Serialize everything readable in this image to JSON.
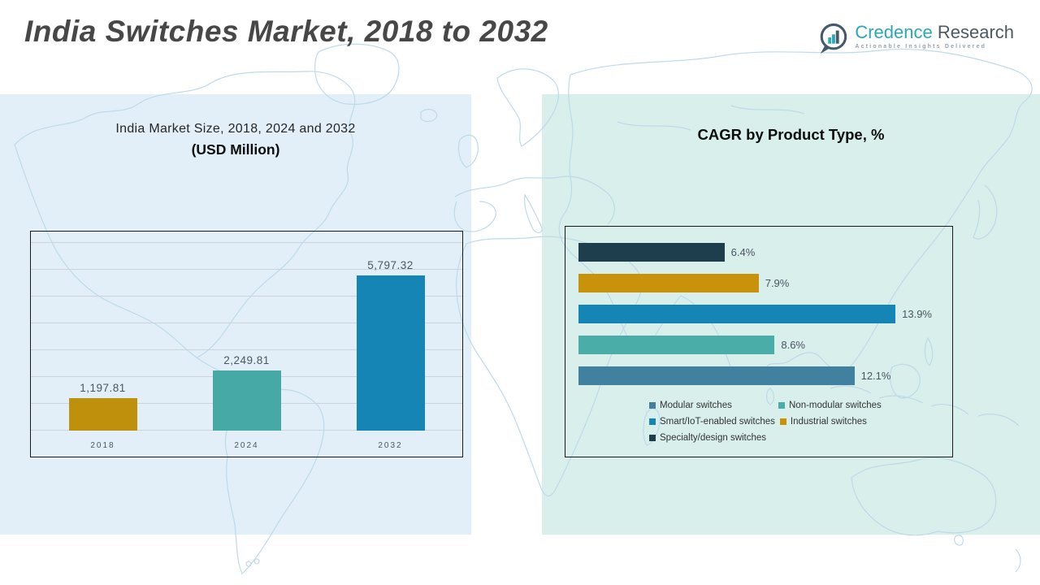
{
  "header": {
    "title": "India Switches Market, 2018 to 2032"
  },
  "logo": {
    "brand_primary": "Credence",
    "brand_secondary": "Research",
    "tagline": "Actionable Insights Delivered"
  },
  "left_chart": {
    "title_line1": "India Market Size, 2018, 2024 and 2032",
    "title_line2": "(USD Million)"
  },
  "right_chart": {
    "title": "CAGR by Product Type, %"
  },
  "colors": {
    "panel_left": "#e2eff8",
    "panel_right": "#d8efec",
    "map_stroke": "#bedae8",
    "chart_border": "#1a1a1a",
    "gridline": "#ccd3db",
    "title_gray": "#474747",
    "label_gray": "#4a5560",
    "brand_teal": "#2ba7b5",
    "brand_slate": "#4d5a63",
    "tagline_gray": "#97a3ab",
    "gold": "#be900c",
    "teal": "#46a9a5",
    "blue": "#1485b5",
    "steel_blue": "#41809f",
    "dark_navy": "#1e3d4d"
  },
  "chart_data": [
    {
      "type": "bar",
      "title": "India Market Size, 2018, 2024 and 2032 (USD Million)",
      "categories": [
        "2018",
        "2024",
        "2032"
      ],
      "values": [
        1197.81,
        2249.81,
        5797.32
      ],
      "labels": [
        "1,197.81",
        "2,249.81",
        "5,797.32"
      ],
      "bar_colors": [
        "#be900c",
        "#46a9a5",
        "#1485b5"
      ],
      "ylabel": "USD Million",
      "ylim": [
        0,
        7000
      ],
      "grid_step": 1000,
      "grid": true,
      "legend_position": "none"
    },
    {
      "type": "bar",
      "orientation": "horizontal",
      "title": "CAGR by Product Type, %",
      "categories": [
        "Specialty/design switches",
        "Industrial switches",
        "Smart/IoT-enabled switches",
        "Non-modular switches",
        "Modular switches"
      ],
      "values": [
        6.4,
        7.9,
        13.9,
        8.6,
        12.1
      ],
      "labels": [
        "6.4%",
        "7.9%",
        "13.9%",
        "8.6%",
        "12.1%"
      ],
      "bar_colors": [
        "#1e3d4d",
        "#c8930b",
        "#1485b5",
        "#4aada8",
        "#41809f"
      ],
      "xlim": [
        0,
        15
      ],
      "grid": false,
      "legend_position": "bottom",
      "legend": [
        {
          "label": "Modular switches",
          "color": "#41809f"
        },
        {
          "label": "Non-modular switches",
          "color": "#4aada8"
        },
        {
          "label": "Smart/IoT-enabled switches",
          "color": "#1485b5"
        },
        {
          "label": "Industrial switches",
          "color": "#c8930b"
        },
        {
          "label": "Specialty/design switches",
          "color": "#1e3d4d"
        }
      ]
    }
  ]
}
